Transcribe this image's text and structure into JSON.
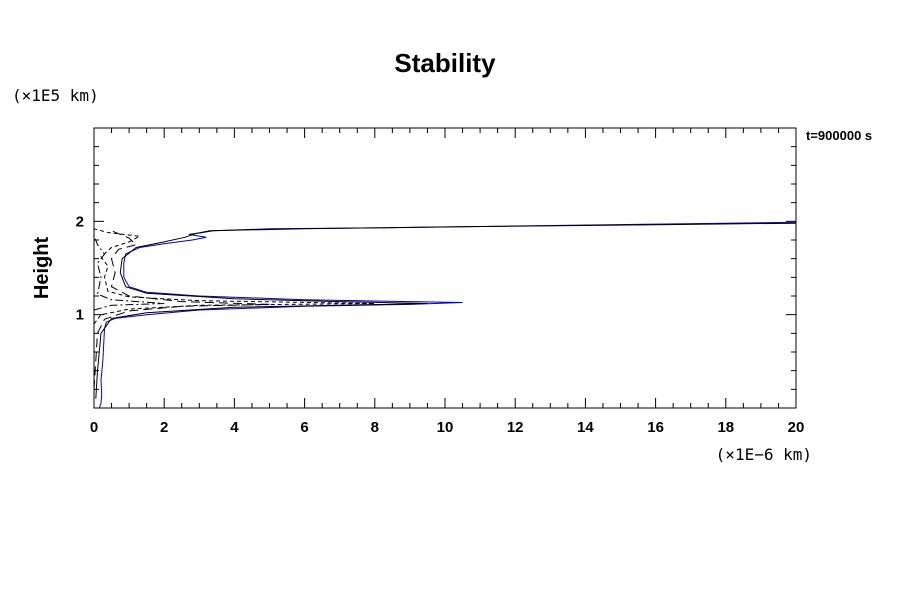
{
  "chart_data": {
    "type": "line",
    "title": "Stability",
    "ylabel": "Height",
    "y_unit": "(×1E5 km)",
    "x_unit": "(×1E−6 km)",
    "time_label": "t=900000 s",
    "xlim": [
      0,
      20
    ],
    "ylim": [
      0,
      3
    ],
    "x_ticks": [
      0,
      2,
      4,
      6,
      8,
      10,
      12,
      14,
      16,
      18,
      20
    ],
    "y_ticks": [
      1,
      2
    ],
    "x_minor_step": 0.5,
    "y_minor_step": 0.2,
    "grid": false,
    "legend": "none",
    "series": [
      {
        "color": "#0000cc",
        "dash": "solid",
        "points": [
          [
            0.15,
            0.0
          ],
          [
            0.2,
            0.05
          ],
          [
            0.22,
            0.15
          ],
          [
            0.2,
            0.3
          ],
          [
            0.25,
            0.5
          ],
          [
            0.28,
            0.7
          ],
          [
            0.3,
            0.85
          ],
          [
            0.35,
            0.92
          ],
          [
            0.6,
            0.96
          ],
          [
            1.5,
            1.0
          ],
          [
            3.0,
            1.05
          ],
          [
            6.0,
            1.09
          ],
          [
            9.0,
            1.11
          ],
          [
            10.5,
            1.13
          ],
          [
            9.0,
            1.14
          ],
          [
            6.0,
            1.16
          ],
          [
            3.0,
            1.2
          ],
          [
            1.5,
            1.24
          ],
          [
            1.0,
            1.3
          ],
          [
            0.85,
            1.4
          ],
          [
            0.85,
            1.55
          ],
          [
            0.9,
            1.65
          ],
          [
            1.3,
            1.72
          ],
          [
            2.0,
            1.76
          ],
          [
            2.8,
            1.8
          ],
          [
            3.2,
            1.83
          ],
          [
            2.7,
            1.86
          ],
          [
            3.1,
            1.88
          ],
          [
            3.4,
            1.9
          ],
          [
            5.0,
            1.92
          ],
          [
            8.0,
            1.93
          ],
          [
            12.0,
            1.95
          ],
          [
            16.0,
            1.97
          ],
          [
            20.0,
            1.99
          ]
        ]
      },
      {
        "color": "#000000",
        "dash": "solid",
        "points": [
          [
            0.05,
            0.1
          ],
          [
            0.1,
            0.4
          ],
          [
            0.2,
            0.8
          ],
          [
            0.5,
            0.96
          ],
          [
            1.5,
            1.02
          ],
          [
            4.0,
            1.08
          ],
          [
            7.0,
            1.1
          ],
          [
            9.5,
            1.12
          ],
          [
            7.0,
            1.14
          ],
          [
            4.0,
            1.17
          ],
          [
            1.5,
            1.23
          ],
          [
            0.9,
            1.3
          ],
          [
            0.75,
            1.45
          ],
          [
            0.8,
            1.6
          ],
          [
            1.2,
            1.72
          ],
          [
            2.0,
            1.78
          ],
          [
            2.6,
            1.83
          ],
          [
            2.9,
            1.87
          ],
          [
            3.3,
            1.9
          ],
          [
            6.0,
            1.92
          ],
          [
            10.0,
            1.94
          ],
          [
            15.0,
            1.96
          ],
          [
            20.0,
            1.98
          ]
        ]
      },
      {
        "color": "#000000",
        "dash": "long-dash",
        "points": [
          [
            0.0,
            0.2
          ],
          [
            0.1,
            0.8
          ],
          [
            0.3,
            0.95
          ],
          [
            1.0,
            1.04
          ],
          [
            2.5,
            1.09
          ],
          [
            5.0,
            1.11
          ],
          [
            2.5,
            1.14
          ],
          [
            1.0,
            1.2
          ],
          [
            0.5,
            1.3
          ],
          [
            0.6,
            1.45
          ],
          [
            0.5,
            1.6
          ],
          [
            0.7,
            1.7
          ],
          [
            1.2,
            1.75
          ],
          [
            1.0,
            1.82
          ],
          [
            0.5,
            1.9
          ]
        ]
      },
      {
        "color": "#000000",
        "dash": "short-dash",
        "points": [
          [
            0.0,
            0.9
          ],
          [
            0.2,
            1.0
          ],
          [
            1.0,
            1.06
          ],
          [
            3.0,
            1.1
          ],
          [
            8.0,
            1.12
          ],
          [
            3.0,
            1.15
          ],
          [
            1.0,
            1.19
          ],
          [
            0.4,
            1.25
          ],
          [
            0.3,
            1.4
          ],
          [
            0.4,
            1.52
          ],
          [
            0.2,
            1.62
          ],
          [
            0.5,
            1.72
          ],
          [
            1.0,
            1.78
          ],
          [
            1.3,
            1.84
          ],
          [
            0.4,
            1.88
          ],
          [
            0.0,
            1.92
          ]
        ]
      },
      {
        "color": "#000000",
        "dash": "dash-dot",
        "points": [
          [
            0.0,
            1.05
          ],
          [
            0.5,
            1.1
          ],
          [
            2.0,
            1.12
          ],
          [
            0.5,
            1.16
          ],
          [
            0.1,
            1.22
          ],
          [
            0.2,
            1.4
          ],
          [
            0.1,
            1.55
          ],
          [
            0.3,
            1.65
          ],
          [
            0.1,
            1.75
          ],
          [
            0.0,
            1.85
          ]
        ]
      }
    ]
  }
}
